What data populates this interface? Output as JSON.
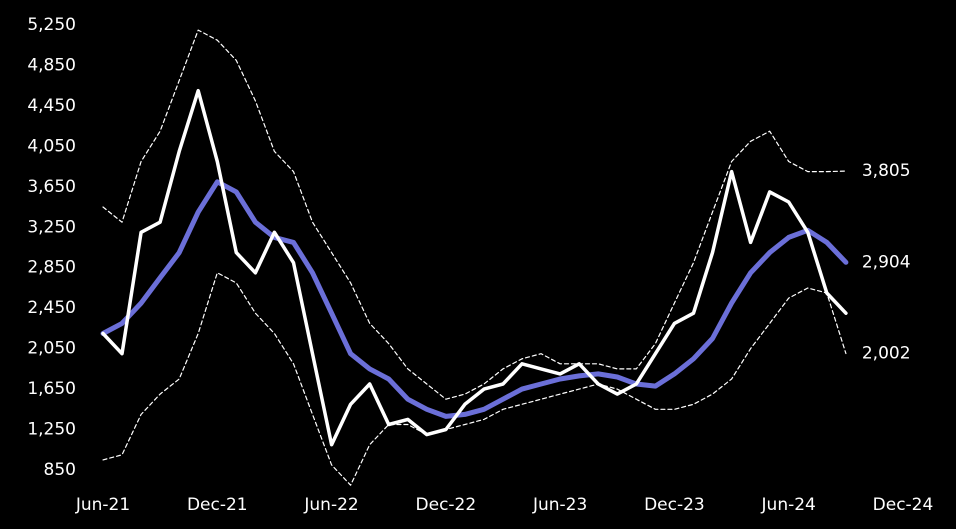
{
  "chart_data": {
    "type": "line",
    "categories": [
      "Jun-21",
      null,
      null,
      null,
      null,
      null,
      "Dec-21",
      null,
      null,
      null,
      null,
      null,
      "Jun-22",
      null,
      null,
      null,
      null,
      null,
      "Dec-22",
      null,
      null,
      null,
      null,
      null,
      "Jun-23",
      null,
      null,
      null,
      null,
      null,
      "Dec-23",
      null,
      null,
      null,
      null,
      null,
      "Jun-24",
      null,
      null,
      null,
      null,
      null,
      "Dec-24"
    ],
    "series": [
      {
        "color": "#ffffff",
        "style": "dashed",
        "values": [
          3450,
          3300,
          3900,
          4200,
          4700,
          5200,
          5100,
          4900,
          4500,
          4000,
          3800,
          3300,
          3000,
          2700,
          2300,
          2100,
          1850,
          1700,
          1550,
          1600,
          1700,
          1850,
          1950,
          2000,
          1900,
          1900,
          1900,
          1850,
          1850,
          2100,
          2500,
          2900,
          3400,
          3900,
          4100,
          4200,
          3900,
          3800,
          3800,
          3805,
          null,
          null,
          null
        ],
        "end_label": "3,805"
      },
      {
        "color": "#6b6fd8",
        "style": "thick",
        "values": [
          2200,
          2300,
          2500,
          2750,
          3000,
          3400,
          3700,
          3600,
          3300,
          3150,
          3100,
          2800,
          2400,
          2000,
          1850,
          1750,
          1550,
          1450,
          1380,
          1400,
          1450,
          1550,
          1650,
          1700,
          1750,
          1780,
          1800,
          1770,
          1700,
          1680,
          1800,
          1950,
          2150,
          2500,
          2800,
          3000,
          3150,
          3220,
          3100,
          2904,
          null,
          null,
          null
        ],
        "end_label": "2,904"
      },
      {
        "color": "#ffffff",
        "style": "dashed",
        "values": [
          950,
          1000,
          1400,
          1600,
          1750,
          2200,
          2800,
          2700,
          2400,
          2200,
          1900,
          1400,
          900,
          700,
          1100,
          1300,
          1300,
          1200,
          1250,
          1300,
          1350,
          1450,
          1500,
          1550,
          1600,
          1650,
          1700,
          1650,
          1550,
          1450,
          1450,
          1500,
          1600,
          1750,
          2050,
          2300,
          2550,
          2650,
          2600,
          2002,
          null,
          null,
          null
        ],
        "end_label": "2,002"
      },
      {
        "color": "#ffffff",
        "style": "solid",
        "values": [
          2200,
          2000,
          3200,
          3300,
          4000,
          4600,
          3900,
          3000,
          2800,
          3200,
          2900,
          2000,
          1100,
          1500,
          1700,
          1300,
          1350,
          1200,
          1250,
          1500,
          1650,
          1700,
          1900,
          1850,
          1800,
          1900,
          1700,
          1600,
          1700,
          2000,
          2300,
          2400,
          3000,
          3800,
          3100,
          3600,
          3500,
          3200,
          2600,
          2400,
          null,
          null,
          null
        ]
      }
    ],
    "ylim": [
      850,
      5250
    ],
    "yticks": [
      850,
      {
        "value": 1250,
        "label": "1,250"
      },
      {
        "value": 1650,
        "label": "1,650"
      },
      {
        "value": 2050,
        "label": "2,050"
      },
      {
        "value": 2450,
        "label": "2,450"
      },
      {
        "value": 2850,
        "label": "2,850"
      },
      {
        "value": 3250,
        "label": "3,250"
      },
      {
        "value": 3650,
        "label": "3,650"
      },
      {
        "value": 4050,
        "label": "4,050"
      },
      {
        "value": 4450,
        "label": "4,450"
      },
      {
        "value": 4850,
        "label": "4,850"
      },
      {
        "value": 5250,
        "label": "5,250"
      }
    ],
    "grid": false
  }
}
